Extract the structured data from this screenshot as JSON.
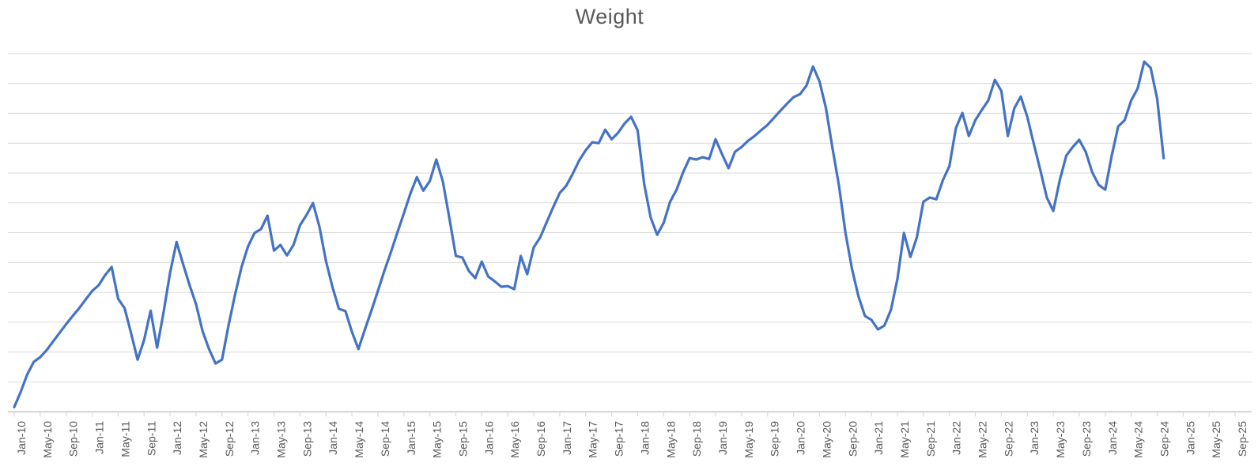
{
  "chart_data": {
    "type": "line",
    "title": "Weight",
    "series_name": "Weight",
    "frequency": "monthly",
    "x_start": "Jan-10",
    "x_end": "Oct-24",
    "x_axis_extends_to": "Sep-25",
    "x_tick_labels": [
      "Jan-10",
      "May-10",
      "Sep-10",
      "Jan-11",
      "May-11",
      "Sep-11",
      "Jan-12",
      "May-12",
      "Sep-12",
      "Jan-13",
      "May-13",
      "Sep-13",
      "Jan-14",
      "May-14",
      "Sep-14",
      "Jan-15",
      "May-15",
      "Sep-15",
      "Jan-16",
      "May-16",
      "Sep-16",
      "Jan-17",
      "May-17",
      "Sep-17",
      "Jan-18",
      "May-18",
      "Sep-18",
      "Jan-19",
      "May-19",
      "Sep-19",
      "Jan-20",
      "May-20",
      "Sep-20",
      "Jan-21",
      "May-21",
      "Sep-21",
      "Jan-22",
      "May-22",
      "Sep-22",
      "Jan-23",
      "May-23",
      "Sep-23",
      "Jan-24",
      "May-24",
      "Sep-24",
      "Jan-25",
      "May-25",
      "Sep-25"
    ],
    "y_units": "gridline units (y-axis has no visible labels; 1 unit = 1 gridline spacing, 0 = x-axis baseline)",
    "ylim": [
      0,
      13
    ],
    "y_gridline_count": 12,
    "y_axis_labels_visible": false,
    "legend": "none",
    "grid": "horizontal only",
    "values": [
      0.16,
      0.67,
      1.25,
      1.67,
      1.83,
      2.07,
      2.36,
      2.65,
      2.94,
      3.21,
      3.47,
      3.76,
      4.05,
      4.24,
      4.58,
      4.85,
      3.79,
      3.47,
      2.63,
      1.75,
      2.41,
      3.39,
      2.15,
      3.34,
      4.66,
      5.69,
      4.95,
      4.24,
      3.6,
      2.7,
      2.1,
      1.62,
      1.75,
      2.89,
      3.92,
      4.85,
      5.54,
      5.99,
      6.12,
      6.57,
      5.4,
      5.59,
      5.24,
      5.59,
      6.25,
      6.59,
      6.99,
      6.2,
      5.06,
      4.19,
      3.45,
      3.37,
      2.68,
      2.1,
      2.76,
      3.39,
      4.05,
      4.72,
      5.35,
      6.01,
      6.65,
      7.31,
      7.86,
      7.41,
      7.73,
      8.45,
      7.71,
      6.49,
      5.22,
      5.17,
      4.72,
      4.48,
      5.03,
      4.53,
      4.37,
      4.19,
      4.21,
      4.11,
      5.22,
      4.61,
      5.51,
      5.85,
      6.36,
      6.86,
      7.33,
      7.57,
      7.97,
      8.42,
      8.76,
      9.03,
      9.0,
      9.45,
      9.13,
      9.35,
      9.66,
      9.88,
      9.43,
      7.63,
      6.51,
      5.93,
      6.33,
      7.04,
      7.44,
      8.02,
      8.5,
      8.45,
      8.53,
      8.47,
      9.13,
      8.63,
      8.16,
      8.71,
      8.87,
      9.08,
      9.24,
      9.43,
      9.61,
      9.85,
      10.09,
      10.32,
      10.54,
      10.64,
      10.93,
      11.57,
      11.07,
      10.17,
      8.84,
      7.57,
      5.99,
      4.79,
      3.87,
      3.21,
      3.08,
      2.76,
      2.89,
      3.42,
      4.45,
      5.99,
      5.19,
      5.85,
      7.04,
      7.18,
      7.12,
      7.76,
      8.23,
      9.5,
      10.01,
      9.24,
      9.77,
      10.11,
      10.43,
      11.12,
      10.75,
      9.24,
      10.17,
      10.56,
      9.88,
      8.98,
      8.1,
      7.18,
      6.73,
      7.76,
      8.58,
      8.87,
      9.11,
      8.71,
      8.02,
      7.6,
      7.44,
      8.58,
      9.56,
      9.77,
      10.43,
      10.83,
      11.73,
      11.52,
      10.48,
      8.5
    ],
    "colors": {
      "line": "#4472C4",
      "gridline": "#D9D9D9",
      "axis": "#BFBFBF",
      "tick": "#D9D9D9",
      "text": "#595959",
      "background": "#FFFFFF"
    }
  }
}
